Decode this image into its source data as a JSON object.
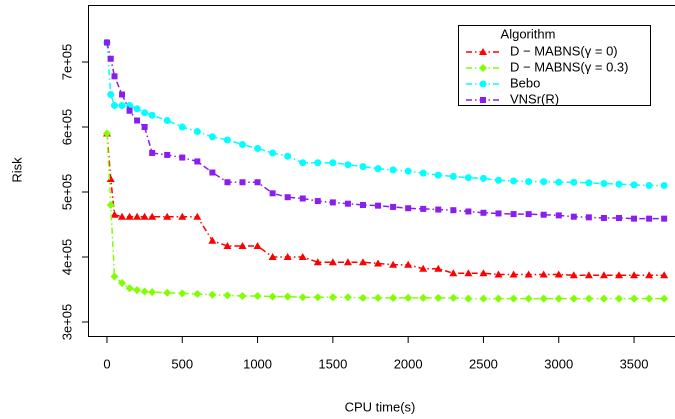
{
  "chart_data": {
    "type": "line",
    "x_label": "CPU time(s)",
    "y_label": "Risk",
    "legend_title": "Algorithm",
    "legend_position": "top-right",
    "x": [
      0,
      25,
      50,
      100,
      150,
      200,
      250,
      300,
      400,
      500,
      600,
      700,
      800,
      900,
      1000,
      1100,
      1200,
      1300,
      1400,
      1500,
      1600,
      1700,
      1800,
      1900,
      2000,
      2100,
      2200,
      2300,
      2400,
      2500,
      2600,
      2700,
      2800,
      2900,
      3000,
      3100,
      3200,
      3300,
      3400,
      3500,
      3600,
      3700
    ],
    "series": [
      {
        "name": "D − MABNS(γ = 0)",
        "color": "#ff0000",
        "marker": "triangle",
        "values": [
          590000,
          520000,
          465000,
          462000,
          462000,
          462000,
          462000,
          462000,
          462000,
          462000,
          462000,
          425000,
          417000,
          417000,
          417000,
          400000,
          400000,
          400000,
          392000,
          392000,
          392000,
          392000,
          390000,
          388000,
          388000,
          382000,
          382000,
          375000,
          375000,
          375000,
          373000,
          373000,
          373000,
          373000,
          373000,
          372000,
          372000,
          372000,
          372000,
          372000,
          372000,
          372000
        ]
      },
      {
        "name": "D − MABNS(γ = 0.3)",
        "color": "#7fff00",
        "marker": "diamond",
        "values": [
          590000,
          480000,
          370000,
          360000,
          352000,
          349000,
          347000,
          346000,
          345000,
          344000,
          343000,
          342000,
          341000,
          340000,
          340000,
          339000,
          339000,
          338000,
          338000,
          338000,
          338000,
          337000,
          337000,
          337000,
          337000,
          337000,
          337000,
          337000,
          336000,
          336000,
          336000,
          336000,
          336000,
          336000,
          336000,
          336000,
          336000,
          336000,
          336000,
          336000,
          336000,
          336000
        ]
      },
      {
        "name": "Bebo",
        "color": "#00ffff",
        "marker": "circle",
        "values": [
          730000,
          650000,
          633000,
          633000,
          633000,
          628000,
          622000,
          618000,
          610000,
          600000,
          593000,
          585000,
          580000,
          573000,
          567000,
          560000,
          555000,
          545000,
          545000,
          545000,
          542000,
          539000,
          536000,
          534000,
          532000,
          529000,
          526000,
          524000,
          522000,
          521000,
          518000,
          517000,
          516000,
          516000,
          515000,
          515000,
          514000,
          513000,
          512000,
          511000,
          510000,
          510000
        ]
      },
      {
        "name": "VNSr(R)",
        "color": "#8a1ef0",
        "marker": "square",
        "values": [
          730000,
          705000,
          678000,
          650000,
          625000,
          610000,
          600000,
          560000,
          557000,
          553000,
          547000,
          530000,
          515000,
          515000,
          515000,
          498000,
          492000,
          490000,
          486000,
          484000,
          482000,
          480000,
          479000,
          477000,
          475000,
          474000,
          473000,
          472000,
          470000,
          468000,
          467000,
          466000,
          466000,
          465000,
          464000,
          462000,
          461000,
          460000,
          460000,
          459000,
          459000,
          459000
        ]
      }
    ],
    "xlim": [
      -126,
      3772
    ],
    "xticks": [
      0,
      500,
      1000,
      1500,
      2000,
      2500,
      3000,
      3500
    ],
    "ylim": [
      276900,
      787700
    ],
    "yticks": [
      {
        "value": 300000,
        "label": "3e+05"
      },
      {
        "value": 400000,
        "label": "4e+05"
      },
      {
        "value": 500000,
        "label": "5e+05"
      },
      {
        "value": 600000,
        "label": "6e+05"
      },
      {
        "value": 700000,
        "label": "7e+05"
      }
    ]
  }
}
